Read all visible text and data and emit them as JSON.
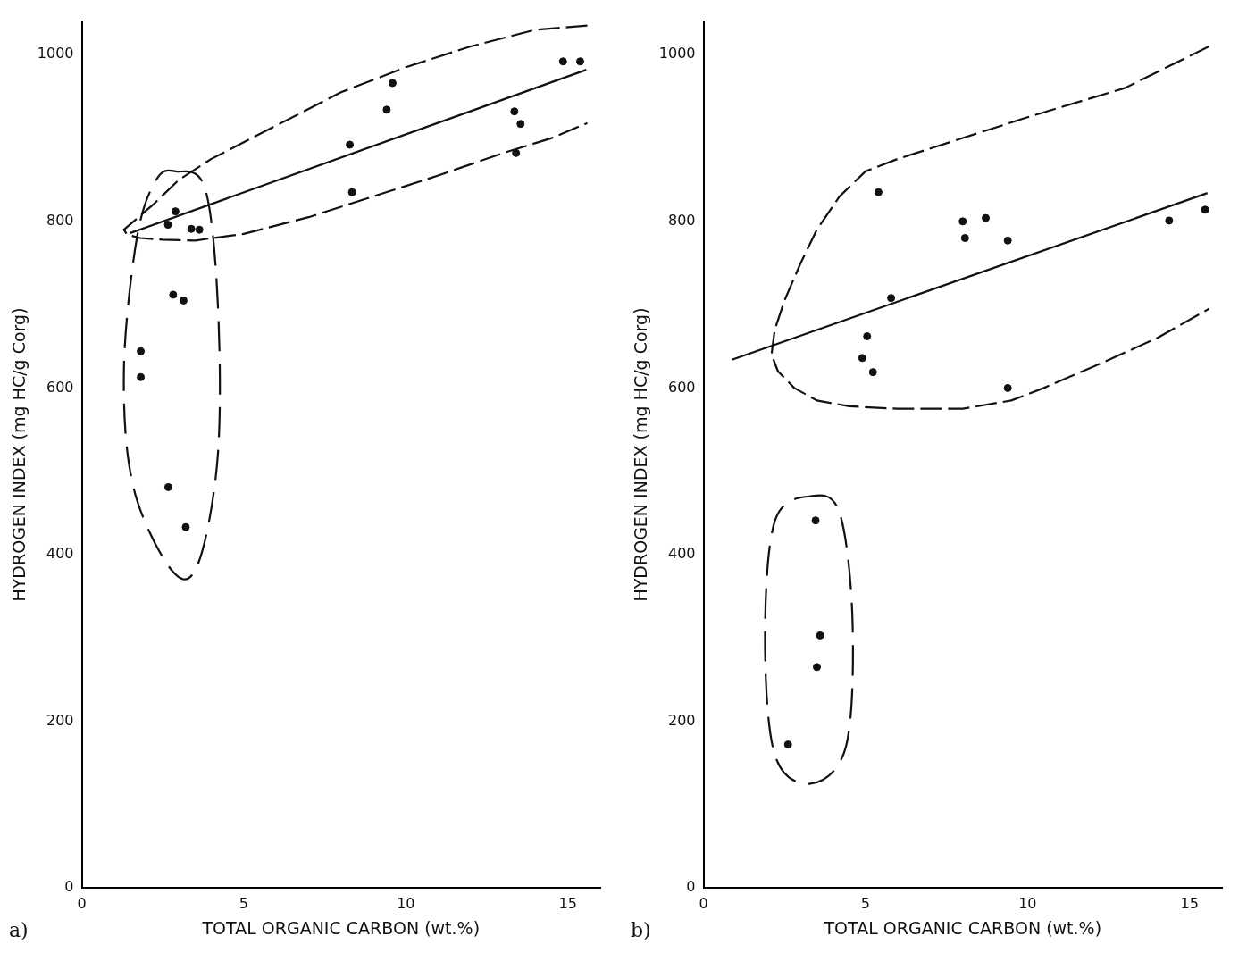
{
  "chart_data": [
    {
      "type": "scatter",
      "xlabel": "TOTAL ORGANIC CARBON (wt.%)",
      "ylabel": "HYDROGEN INDEX (mg HC/g Corg)",
      "annotations": [
        "a)"
      ],
      "xlim": [
        0,
        16
      ],
      "xticks": [
        0,
        5,
        10,
        15
      ],
      "ylim": [
        0,
        1040
      ],
      "yticks": [
        0,
        200,
        400,
        600,
        800,
        1000
      ],
      "grid": false,
      "legend": false,
      "marker": "circle",
      "series": [
        {
          "color": "#111111",
          "x": [
            2.66,
            2.89,
            3.38,
            3.63,
            2.82,
            3.14,
            1.82,
            1.82,
            2.67,
            3.21,
            8.27,
            8.34,
            9.41,
            9.59,
            13.35,
            13.54,
            13.4,
            14.85,
            15.38
          ],
          "values": [
            796,
            812,
            791,
            790,
            712,
            705,
            644,
            613,
            481,
            433,
            892,
            835,
            934,
            966,
            932,
            917,
            882,
            992,
            992
          ]
        },
        {
          "type": "line",
          "color": "#111111",
          "x": [
            1.5,
            15.57
          ],
          "values": [
            786,
            982
          ],
          "marker": "none",
          "line_style": "solid"
        },
        {
          "type": "line",
          "color": "#111111",
          "x": [
            15.6,
            14,
            12,
            10,
            8,
            6,
            4,
            3,
            2.2,
            1.6,
            1.3,
            1.4,
            1.8,
            2.5,
            3.5,
            5,
            7,
            9,
            11,
            13,
            14.5,
            15.6
          ],
          "values": [
            1035,
            1030,
            1010,
            985,
            955,
            915,
            875,
            850,
            820,
            800,
            790,
            784,
            780,
            778,
            777,
            785,
            805,
            830,
            855,
            882,
            900,
            918
          ],
          "marker": "none",
          "line_style": "dashed"
        }
      ]
    },
    {
      "type": "scatter",
      "xlabel": "TOTAL ORGANIC CARBON (wt.%)",
      "ylabel": "HYDROGEN INDEX (mg HC/g Corg)",
      "annotations": [
        "b)"
      ],
      "xlim": [
        0,
        16
      ],
      "xticks": [
        0,
        5,
        10,
        15
      ],
      "ylim": [
        0,
        1040
      ],
      "yticks": [
        0,
        200,
        400,
        600,
        800,
        1000
      ],
      "grid": false,
      "legend": false,
      "marker": "circle",
      "series": [
        {
          "color": "#111111",
          "x": [
            5.4,
            8.0,
            8.71,
            8.07,
            9.39,
            5.79,
            5.05,
            4.9,
            5.23,
            9.39,
            14.37,
            15.48,
            3.46,
            3.6,
            3.5,
            2.61
          ],
          "values": [
            835,
            800,
            804,
            780,
            777,
            708,
            662,
            636,
            619,
            600,
            801,
            814,
            441,
            303,
            265,
            172
          ]
        },
        {
          "type": "line",
          "color": "#111111",
          "x": [
            0.88,
            15.55
          ],
          "values": [
            634,
            834
          ],
          "marker": "none",
          "line_style": "solid"
        },
        {
          "type": "line",
          "color": "#111111",
          "x": [
            15.6,
            13,
            10,
            8,
            6,
            5,
            4.2,
            3.5,
            3,
            2.5,
            2.2,
            2.1,
            2.3,
            2.8,
            3.5,
            4.5,
            6,
            8,
            9.5,
            10.5,
            12,
            14,
            15.6
          ],
          "values": [
            1010,
            960,
            925,
            900,
            875,
            860,
            830,
            790,
            750,
            705,
            670,
            640,
            620,
            600,
            585,
            578,
            575,
            575,
            585,
            600,
            625,
            660,
            695
          ],
          "marker": "none",
          "line_style": "dashed"
        }
      ]
    }
  ]
}
